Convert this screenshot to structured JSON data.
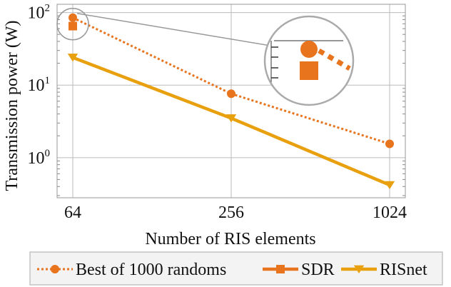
{
  "chart_data": {
    "type": "line",
    "xlabel": "Number of RIS elements",
    "ylabel": "Transmission power (W)",
    "x_scale": "log2",
    "y_scale": "log10",
    "x": [
      64,
      256,
      1024
    ],
    "x_tick_labels": [
      "64",
      "256",
      "1024"
    ],
    "y_ticks": [
      {
        "value": 100,
        "base": "10",
        "exp": "2"
      },
      {
        "value": 10,
        "base": "10",
        "exp": "1"
      },
      {
        "value": 1,
        "base": "10",
        "exp": "0"
      }
    ],
    "ylim": [
      0.28,
      130
    ],
    "grid": true,
    "legend_position": "bottom",
    "series": [
      {
        "name": "Best of 1000 randoms",
        "values": [
          85,
          7.6,
          1.55
        ],
        "color": "#e8741e",
        "line": "dotted",
        "marker": "circle"
      },
      {
        "name": "SDR",
        "values": [
          65,
          null,
          null
        ],
        "color": "#e8741e",
        "line": "solid",
        "marker": "square"
      },
      {
        "name": "RISnet",
        "values": [
          24,
          3.5,
          0.42
        ],
        "color": "#e8a00e",
        "line": "solid",
        "marker": "triangle-down"
      }
    ],
    "inset": {
      "type": "zoom-magnifier",
      "target_x": 64
    }
  }
}
